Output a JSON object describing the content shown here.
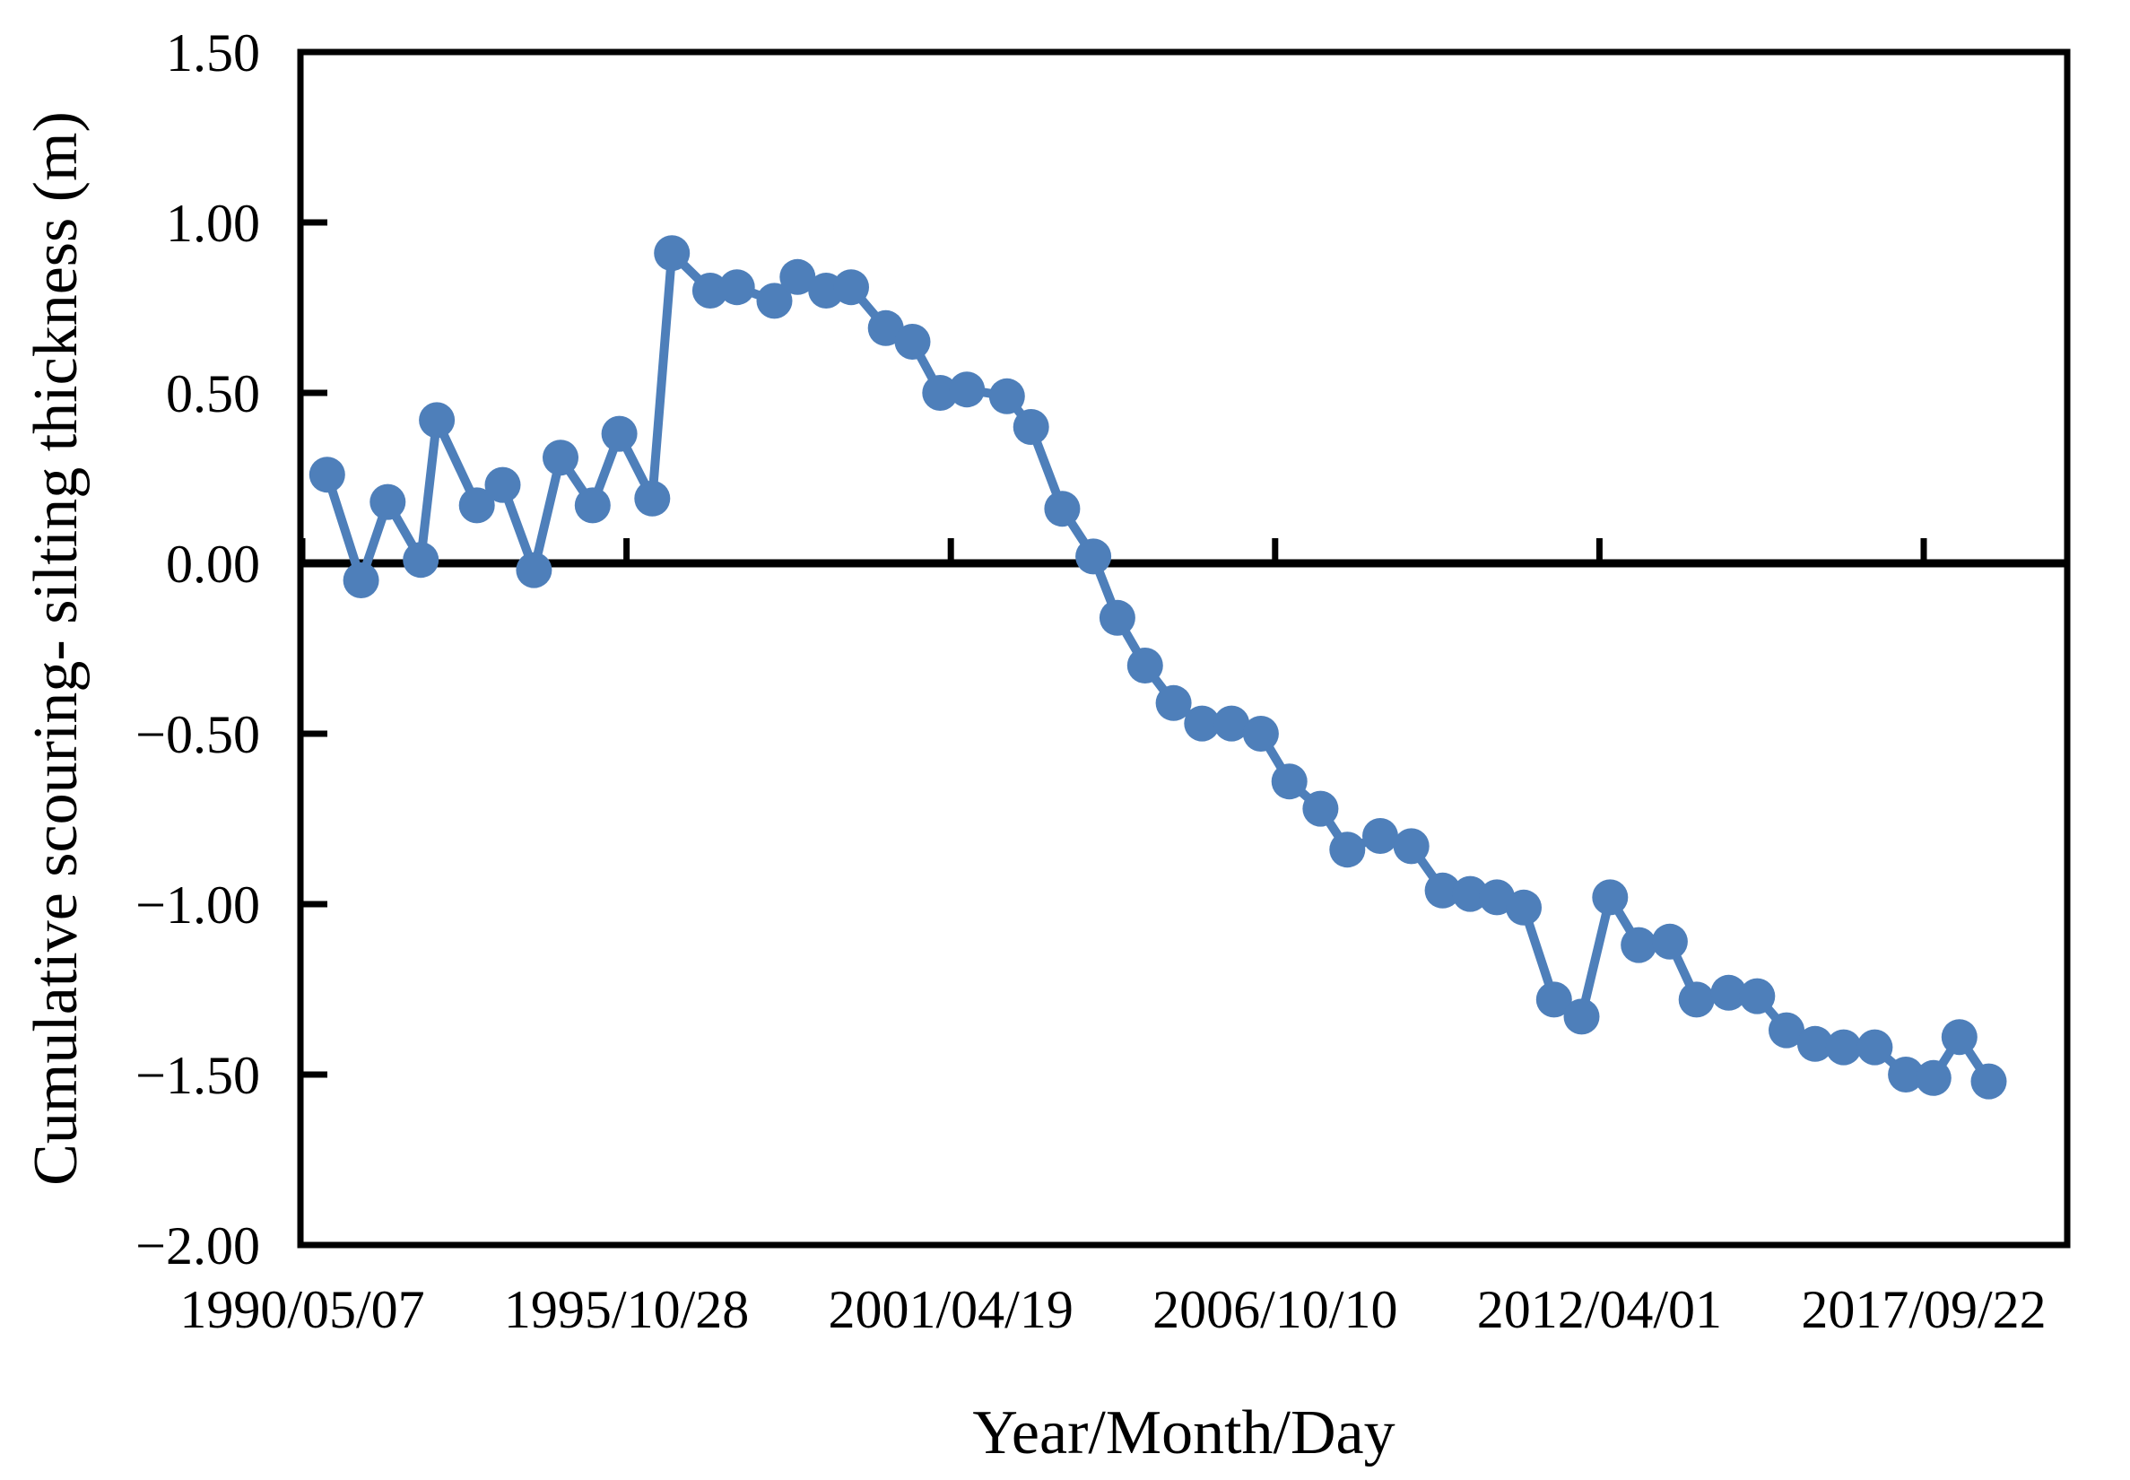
{
  "chart_data": {
    "type": "line",
    "title": "",
    "xlabel": "Year/Month/Day",
    "ylabel": "Cumulative scouring- silting thickness (m)",
    "legend": [],
    "grid": false,
    "background": "#ffffff",
    "axis_color": "#000000",
    "ylim": [
      -2.0,
      1.5
    ],
    "y_tick_step": 0.5,
    "y_tick_labels": [
      "1.50",
      "1.00",
      "0.50",
      "0.00",
      "−0.50",
      "−1.00",
      "−1.50",
      "−2.00"
    ],
    "y_tick_values": [
      1.5,
      1.0,
      0.5,
      0.0,
      -0.5,
      -1.0,
      -1.5,
      -2.0
    ],
    "x_tick_labels": [
      "1990/05/07",
      "1995/10/28",
      "2001/04/19",
      "2006/10/10",
      "2012/04/01",
      "2017/09/22"
    ],
    "x_tick_days": [
      0,
      2000,
      4000,
      6000,
      8000,
      10000
    ],
    "x_epoch": "1990/05/07",
    "x_unit": "days since first survey (ticks every 2000 days)",
    "series": [
      {
        "name": "Cumulative scouring-silting thickness",
        "color": "#4E7FBA",
        "marker": "circle",
        "points_format": "[days_since_1990_05_07, thickness_m]",
        "points": [
          [
            154,
            0.26
          ],
          [
            363,
            -0.05
          ],
          [
            527,
            0.18
          ],
          [
            731,
            0.01
          ],
          [
            830,
            0.42
          ],
          [
            1077,
            0.17
          ],
          [
            1236,
            0.23
          ],
          [
            1429,
            -0.02
          ],
          [
            1593,
            0.31
          ],
          [
            1791,
            0.17
          ],
          [
            1956,
            0.38
          ],
          [
            2159,
            0.19
          ],
          [
            2280,
            0.91
          ],
          [
            2516,
            0.8
          ],
          [
            2681,
            0.81
          ],
          [
            2912,
            0.77
          ],
          [
            3055,
            0.84
          ],
          [
            3231,
            0.8
          ],
          [
            3385,
            0.81
          ],
          [
            3599,
            0.69
          ],
          [
            3764,
            0.65
          ],
          [
            3934,
            0.5
          ],
          [
            4099,
            0.51
          ],
          [
            4346,
            0.49
          ],
          [
            4495,
            0.4
          ],
          [
            4687,
            0.16
          ],
          [
            4879,
            0.02
          ],
          [
            5027,
            -0.16
          ],
          [
            5198,
            -0.3
          ],
          [
            5374,
            -0.41
          ],
          [
            5549,
            -0.47
          ],
          [
            5731,
            -0.47
          ],
          [
            5912,
            -0.5
          ],
          [
            6088,
            -0.64
          ],
          [
            6280,
            -0.72
          ],
          [
            6445,
            -0.84
          ],
          [
            6648,
            -0.8
          ],
          [
            6840,
            -0.83
          ],
          [
            7033,
            -0.96
          ],
          [
            7203,
            -0.97
          ],
          [
            7368,
            -0.98
          ],
          [
            7533,
            -1.01
          ],
          [
            7720,
            -1.28
          ],
          [
            7890,
            -1.33
          ],
          [
            8066,
            -0.98
          ],
          [
            8242,
            -1.12
          ],
          [
            8434,
            -1.11
          ],
          [
            8599,
            -1.28
          ],
          [
            8797,
            -1.26
          ],
          [
            8973,
            -1.27
          ],
          [
            9154,
            -1.37
          ],
          [
            9330,
            -1.41
          ],
          [
            9506,
            -1.42
          ],
          [
            9698,
            -1.42
          ],
          [
            9890,
            -1.5
          ],
          [
            10060,
            -1.51
          ],
          [
            10220,
            -1.39
          ],
          [
            10401,
            -1.52
          ]
        ]
      }
    ]
  }
}
